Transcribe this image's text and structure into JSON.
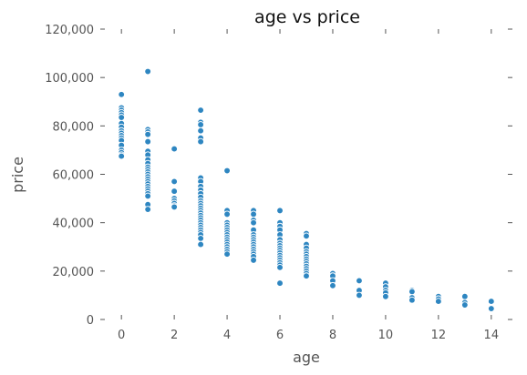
{
  "chart_data": {
    "type": "scatter",
    "title": "age vs price",
    "xlabel": "age",
    "ylabel": "price",
    "xlim": [
      -0.8,
      14.8
    ],
    "ylim": [
      0,
      120000
    ],
    "x_ticks": [
      0,
      2,
      4,
      6,
      8,
      10,
      12,
      14
    ],
    "x_tick_labels": [
      "0",
      "2",
      "4",
      "6",
      "8",
      "10",
      "12",
      "14"
    ],
    "y_ticks": [
      0,
      20000,
      40000,
      60000,
      80000,
      100000,
      120000
    ],
    "y_tick_labels": [
      "0",
      "20,000",
      "40,000",
      "60,000",
      "80,000",
      "100,000",
      "120,000"
    ],
    "grid": false,
    "colors": {
      "point": "#2e86c1",
      "point_edge": "#ffffff"
    },
    "series": [
      {
        "points": [
          [
            0,
            93000
          ],
          [
            0,
            87500
          ],
          [
            0,
            86500
          ],
          [
            0,
            85500
          ],
          [
            0,
            84500
          ],
          [
            0,
            83500
          ],
          [
            0,
            81000
          ],
          [
            0,
            79500
          ],
          [
            0,
            78000
          ],
          [
            0,
            77000
          ],
          [
            0,
            76000
          ],
          [
            0,
            75000
          ],
          [
            0,
            74000
          ],
          [
            0,
            72000
          ],
          [
            0,
            70000
          ],
          [
            0,
            69000
          ],
          [
            0,
            68000
          ],
          [
            0,
            67500
          ],
          [
            1,
            102500
          ],
          [
            1,
            78500
          ],
          [
            1,
            77500
          ],
          [
            1,
            76500
          ],
          [
            1,
            73500
          ],
          [
            1,
            69500
          ],
          [
            1,
            68000
          ],
          [
            1,
            66000
          ],
          [
            1,
            64500
          ],
          [
            1,
            63000
          ],
          [
            1,
            62000
          ],
          [
            1,
            61000
          ],
          [
            1,
            60000
          ],
          [
            1,
            59000
          ],
          [
            1,
            58000
          ],
          [
            1,
            57000
          ],
          [
            1,
            56000
          ],
          [
            1,
            55000
          ],
          [
            1,
            54000
          ],
          [
            1,
            53000
          ],
          [
            1,
            52000
          ],
          [
            1,
            51000
          ],
          [
            1,
            47500
          ],
          [
            1,
            45500
          ],
          [
            2,
            70500
          ],
          [
            2,
            57000
          ],
          [
            2,
            53000
          ],
          [
            2,
            50000
          ],
          [
            2,
            49000
          ],
          [
            2,
            48000
          ],
          [
            2,
            47000
          ],
          [
            2,
            46500
          ],
          [
            3,
            86500
          ],
          [
            3,
            81500
          ],
          [
            3,
            80500
          ],
          [
            3,
            78000
          ],
          [
            3,
            75000
          ],
          [
            3,
            73500
          ],
          [
            3,
            58500
          ],
          [
            3,
            57000
          ],
          [
            3,
            55000
          ],
          [
            3,
            53500
          ],
          [
            3,
            52000
          ],
          [
            3,
            50500
          ],
          [
            3,
            49000
          ],
          [
            3,
            48000
          ],
          [
            3,
            47000
          ],
          [
            3,
            46000
          ],
          [
            3,
            45000
          ],
          [
            3,
            44000
          ],
          [
            3,
            43000
          ],
          [
            3,
            42000
          ],
          [
            3,
            41000
          ],
          [
            3,
            40000
          ],
          [
            3,
            39000
          ],
          [
            3,
            38000
          ],
          [
            3,
            37000
          ],
          [
            3,
            36000
          ],
          [
            3,
            35000
          ],
          [
            3,
            33500
          ],
          [
            3,
            31000
          ],
          [
            4,
            61500
          ],
          [
            4,
            45000
          ],
          [
            4,
            43500
          ],
          [
            4,
            40000
          ],
          [
            4,
            39000
          ],
          [
            4,
            38000
          ],
          [
            4,
            37000
          ],
          [
            4,
            36000
          ],
          [
            4,
            35000
          ],
          [
            4,
            34000
          ],
          [
            4,
            33000
          ],
          [
            4,
            32000
          ],
          [
            4,
            31000
          ],
          [
            4,
            30000
          ],
          [
            4,
            29000
          ],
          [
            4,
            28000
          ],
          [
            4,
            27000
          ],
          [
            5,
            45000
          ],
          [
            5,
            43500
          ],
          [
            5,
            41000
          ],
          [
            5,
            40000
          ],
          [
            5,
            37000
          ],
          [
            5,
            35000
          ],
          [
            5,
            34000
          ],
          [
            5,
            33000
          ],
          [
            5,
            32000
          ],
          [
            5,
            31000
          ],
          [
            5,
            30000
          ],
          [
            5,
            29000
          ],
          [
            5,
            28000
          ],
          [
            5,
            27000
          ],
          [
            5,
            26000
          ],
          [
            5,
            24500
          ],
          [
            6,
            45000
          ],
          [
            6,
            40000
          ],
          [
            6,
            38500
          ],
          [
            6,
            37000
          ],
          [
            6,
            35000
          ],
          [
            6,
            33000
          ],
          [
            6,
            31500
          ],
          [
            6,
            30500
          ],
          [
            6,
            29500
          ],
          [
            6,
            28500
          ],
          [
            6,
            27500
          ],
          [
            6,
            26500
          ],
          [
            6,
            25500
          ],
          [
            6,
            24500
          ],
          [
            6,
            23500
          ],
          [
            6,
            22500
          ],
          [
            6,
            21500
          ],
          [
            6,
            15000
          ],
          [
            7,
            35500
          ],
          [
            7,
            34500
          ],
          [
            7,
            31000
          ],
          [
            7,
            29500
          ],
          [
            7,
            28000
          ],
          [
            7,
            27000
          ],
          [
            7,
            26000
          ],
          [
            7,
            25000
          ],
          [
            7,
            24000
          ],
          [
            7,
            23000
          ],
          [
            7,
            22000
          ],
          [
            7,
            21000
          ],
          [
            7,
            20000
          ],
          [
            7,
            19000
          ],
          [
            7,
            18000
          ],
          [
            8,
            19000
          ],
          [
            8,
            18000
          ],
          [
            8,
            16000
          ],
          [
            8,
            14000
          ],
          [
            9,
            16000
          ],
          [
            9,
            12000
          ],
          [
            9,
            10000
          ],
          [
            10,
            15000
          ],
          [
            10,
            13500
          ],
          [
            10,
            12000
          ],
          [
            10,
            11000
          ],
          [
            10,
            9500
          ],
          [
            11,
            12000
          ],
          [
            11,
            11500
          ],
          [
            11,
            9000
          ],
          [
            11,
            8000
          ],
          [
            12,
            9500
          ],
          [
            12,
            8500
          ],
          [
            12,
            7500
          ],
          [
            13,
            9500
          ],
          [
            13,
            7000
          ],
          [
            13,
            6000
          ],
          [
            14,
            7500
          ],
          [
            14,
            4500
          ]
        ]
      }
    ]
  }
}
